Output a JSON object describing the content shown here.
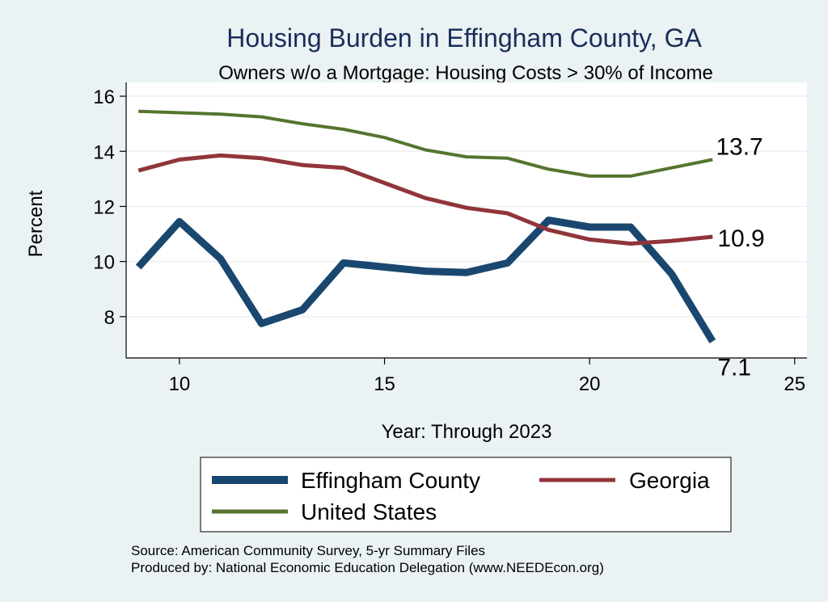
{
  "chart_data": {
    "type": "line",
    "title": "Housing Burden in Effingham County, GA",
    "subtitle": "Owners w/o a Mortgage: Housing Costs > 30% of Income",
    "xlabel": "Year: Through 2023",
    "ylabel": "Percent",
    "xlim": [
      8.7,
      25.3
    ],
    "ylim": [
      6.5,
      16.5
    ],
    "x_ticks": [
      10,
      15,
      20,
      25
    ],
    "y_ticks": [
      8,
      10,
      12,
      14,
      16
    ],
    "grid": true,
    "legend_position": "bottom",
    "x": [
      9,
      10,
      11,
      12,
      13,
      14,
      15,
      16,
      17,
      18,
      19,
      20,
      21,
      22,
      23
    ],
    "series": [
      {
        "name": "Effingham County",
        "color": "#1a476f",
        "values": [
          9.8,
          11.45,
          10.1,
          7.75,
          8.25,
          9.95,
          9.8,
          9.65,
          9.6,
          9.95,
          11.5,
          11.25,
          11.25,
          9.55,
          7.1
        ],
        "end_label": "7.1"
      },
      {
        "name": "Georgia",
        "color": "#90353b",
        "values": [
          13.3,
          13.7,
          13.85,
          13.75,
          13.5,
          13.4,
          12.85,
          12.3,
          11.95,
          11.75,
          11.15,
          10.8,
          10.65,
          10.75,
          10.9
        ],
        "end_label": "10.9"
      },
      {
        "name": "United States",
        "color": "#55752f",
        "values": [
          15.45,
          15.4,
          15.35,
          15.25,
          15.0,
          14.8,
          14.5,
          14.05,
          13.8,
          13.75,
          13.35,
          13.1,
          13.1,
          13.4,
          13.7
        ],
        "end_label": "13.7"
      }
    ],
    "notes": [
      "Source: American Community Survey, 5-yr Summary Files",
      "Produced by: National Economic Education Delegation (www.NEEDEcon.org)"
    ]
  }
}
